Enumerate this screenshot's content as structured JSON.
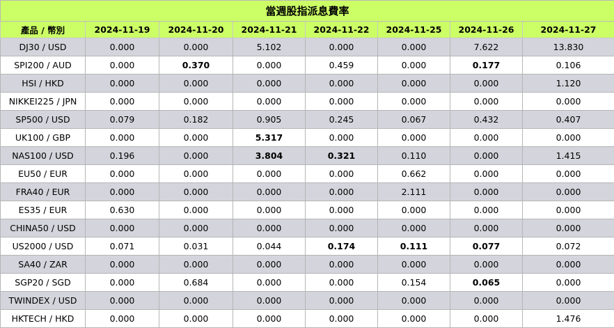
{
  "title": "當週股指派息費率",
  "header": {
    "product_label": "產品 / 幣別",
    "dates": [
      "2024-11-19",
      "2024-11-20",
      "2024-11-21",
      "2024-11-22",
      "2024-11-25",
      "2024-11-26",
      "2024-11-27"
    ]
  },
  "rows": [
    {
      "product": "DJ30 / USD",
      "values": [
        "0.000",
        "0.000",
        "5.102",
        "0.000",
        "0.000",
        "7.622",
        "13.830"
      ],
      "bold": []
    },
    {
      "product": "SPI200 / AUD",
      "values": [
        "0.000",
        "0.370",
        "0.000",
        "0.459",
        "0.000",
        "0.177",
        "0.106"
      ],
      "bold": [
        1,
        5
      ]
    },
    {
      "product": "HSI / HKD",
      "values": [
        "0.000",
        "0.000",
        "0.000",
        "0.000",
        "0.000",
        "0.000",
        "1.120"
      ],
      "bold": []
    },
    {
      "product": "NIKKEI225 / JPN",
      "values": [
        "0.000",
        "0.000",
        "0.000",
        "0.000",
        "0.000",
        "0.000",
        "0.000"
      ],
      "bold": []
    },
    {
      "product": "SP500 / USD",
      "values": [
        "0.079",
        "0.182",
        "0.905",
        "0.245",
        "0.067",
        "0.432",
        "0.407"
      ],
      "bold": []
    },
    {
      "product": "UK100 / GBP",
      "values": [
        "0.000",
        "0.000",
        "5.317",
        "0.000",
        "0.000",
        "0.000",
        "0.000"
      ],
      "bold": [
        2
      ]
    },
    {
      "product": "NAS100 / USD",
      "values": [
        "0.196",
        "0.000",
        "3.804",
        "0.321",
        "0.110",
        "0.000",
        "1.415"
      ],
      "bold": [
        2,
        3
      ]
    },
    {
      "product": "EU50 / EUR",
      "values": [
        "0.000",
        "0.000",
        "0.000",
        "0.000",
        "0.662",
        "0.000",
        "0.000"
      ],
      "bold": []
    },
    {
      "product": "FRA40 / EUR",
      "values": [
        "0.000",
        "0.000",
        "0.000",
        "0.000",
        "2.111",
        "0.000",
        "0.000"
      ],
      "bold": []
    },
    {
      "product": "ES35 / EUR",
      "values": [
        "0.630",
        "0.000",
        "0.000",
        "0.000",
        "0.000",
        "0.000",
        "0.000"
      ],
      "bold": []
    },
    {
      "product": "CHINA50 / USD",
      "values": [
        "0.000",
        "0.000",
        "0.000",
        "0.000",
        "0.000",
        "0.000",
        "0.000"
      ],
      "bold": []
    },
    {
      "product": "US2000 / USD",
      "values": [
        "0.071",
        "0.031",
        "0.044",
        "0.174",
        "0.111",
        "0.077",
        "0.072"
      ],
      "bold": [
        3,
        4,
        5
      ]
    },
    {
      "product": "SA40 / ZAR",
      "values": [
        "0.000",
        "0.000",
        "0.000",
        "0.000",
        "0.000",
        "0.000",
        "0.000"
      ],
      "bold": []
    },
    {
      "product": "SGP20 / SGD",
      "values": [
        "0.000",
        "0.684",
        "0.000",
        "0.000",
        "0.154",
        "0.065",
        "0.000"
      ],
      "bold": [
        5
      ]
    },
    {
      "product": "TWINDEX / USD",
      "values": [
        "0.000",
        "0.000",
        "0.000",
        "0.000",
        "0.000",
        "0.000",
        "0.000"
      ],
      "bold": []
    },
    {
      "product": "HKTECH / HKD",
      "values": [
        "0.000",
        "0.000",
        "0.000",
        "0.000",
        "0.000",
        "0.000",
        "1.476"
      ],
      "bold": []
    }
  ],
  "colors": {
    "header_bg": "#ccff66",
    "row_shade": "#d4d4dc",
    "row_plain": "#ffffff",
    "border": "#b5b5b5"
  }
}
